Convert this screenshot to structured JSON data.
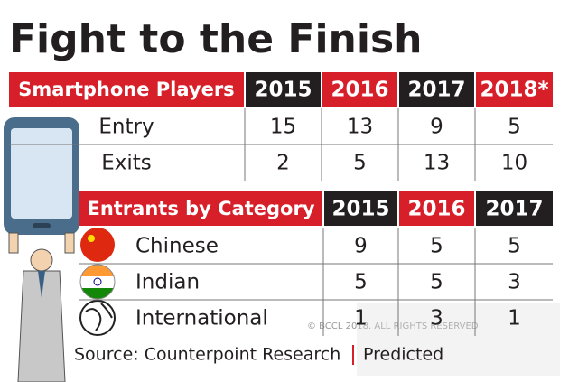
{
  "title": "Fight to the Finish",
  "table1": {
    "header": [
      "Smartphone Players",
      "2015",
      "2016",
      "2017",
      "2018*"
    ],
    "rows": [
      [
        "Entry",
        15,
        13,
        9,
        5
      ],
      [
        "Exits",
        2,
        5,
        13,
        10
      ]
    ]
  },
  "table2": {
    "header": [
      "Entrants by Category",
      "2015",
      "2016",
      "2017"
    ],
    "rows": [
      [
        "Chinese",
        9,
        5,
        5
      ],
      [
        "Indian",
        5,
        5,
        3
      ],
      [
        "International",
        1,
        3,
        1
      ]
    ]
  },
  "source": "Source: Counterpoint Research",
  "note": "Predicted",
  "watermark": "© BCCL 2018. ALL RIGHTS RESERVED"
}
